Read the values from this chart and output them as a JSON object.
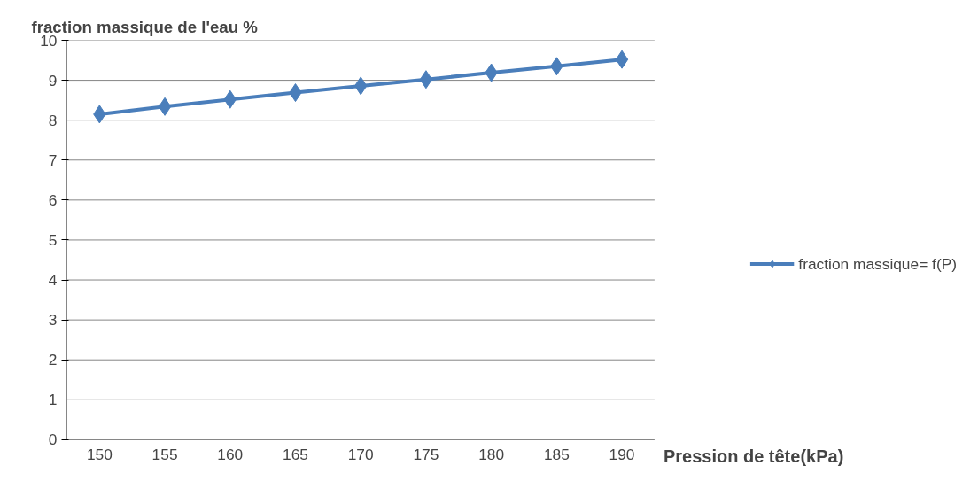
{
  "chart_data": {
    "type": "line",
    "ylabel": "fraction massique de l'eau %",
    "xlabel": "Pression de tête(kPa)",
    "categories": [
      "150",
      "155",
      "160",
      "165",
      "170",
      "175",
      "180",
      "185",
      "190"
    ],
    "series": [
      {
        "name": "fraction massique= f(P)",
        "color": "#4a7ebb",
        "values": [
          8.15,
          8.34,
          8.52,
          8.69,
          8.86,
          9.02,
          9.19,
          9.35,
          9.52
        ]
      }
    ],
    "ylim": [
      0,
      10
    ],
    "yticks": [
      0,
      1,
      2,
      3,
      4,
      5,
      6,
      7,
      8,
      9,
      10
    ],
    "grid": "y",
    "legend": "right",
    "marker": "diamond",
    "line_style": "solid"
  }
}
